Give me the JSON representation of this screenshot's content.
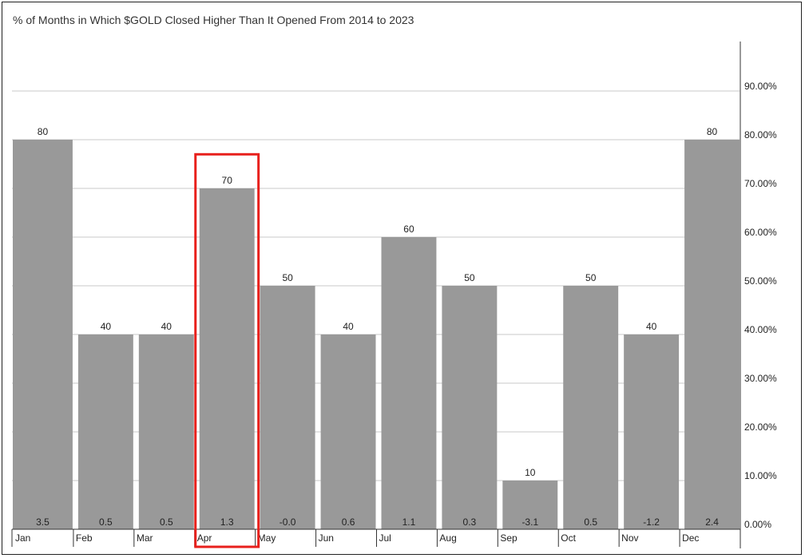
{
  "chart_data": {
    "type": "bar",
    "title": "% of Months in Which $GOLD Closed Higher Than It Opened From 2014 to 2023",
    "categories": [
      "Jan",
      "Feb",
      "Mar",
      "Apr",
      "May",
      "Jun",
      "Jul",
      "Aug",
      "Sep",
      "Oct",
      "Nov",
      "Dec"
    ],
    "values": [
      80,
      40,
      40,
      70,
      50,
      40,
      60,
      50,
      10,
      50,
      40,
      80
    ],
    "value_labels": [
      "80",
      "40",
      "40",
      "70",
      "50",
      "40",
      "60",
      "50",
      "10",
      "50",
      "40",
      "80"
    ],
    "secondary_labels": [
      "3.5",
      "0.5",
      "0.5",
      "1.3",
      "-0.0",
      "0.6",
      "1.1",
      "0.3",
      "-3.1",
      "0.5",
      "-1.2",
      "2.4"
    ],
    "yticks": [
      0,
      10,
      20,
      30,
      40,
      50,
      60,
      70,
      80,
      90
    ],
    "ytick_labels": [
      "0.00%",
      "10.00%",
      "20.00%",
      "30.00%",
      "40.00%",
      "50.00%",
      "60.00%",
      "70.00%",
      "80.00%",
      "90.00%"
    ],
    "ylim": [
      0,
      100
    ],
    "y_axis_position": "right",
    "grid": true,
    "highlighted_category": "Apr",
    "colors": {
      "bar": "#999999",
      "grid": "#c8c8c8",
      "highlight": "#e8201c",
      "axis": "#333333"
    }
  }
}
